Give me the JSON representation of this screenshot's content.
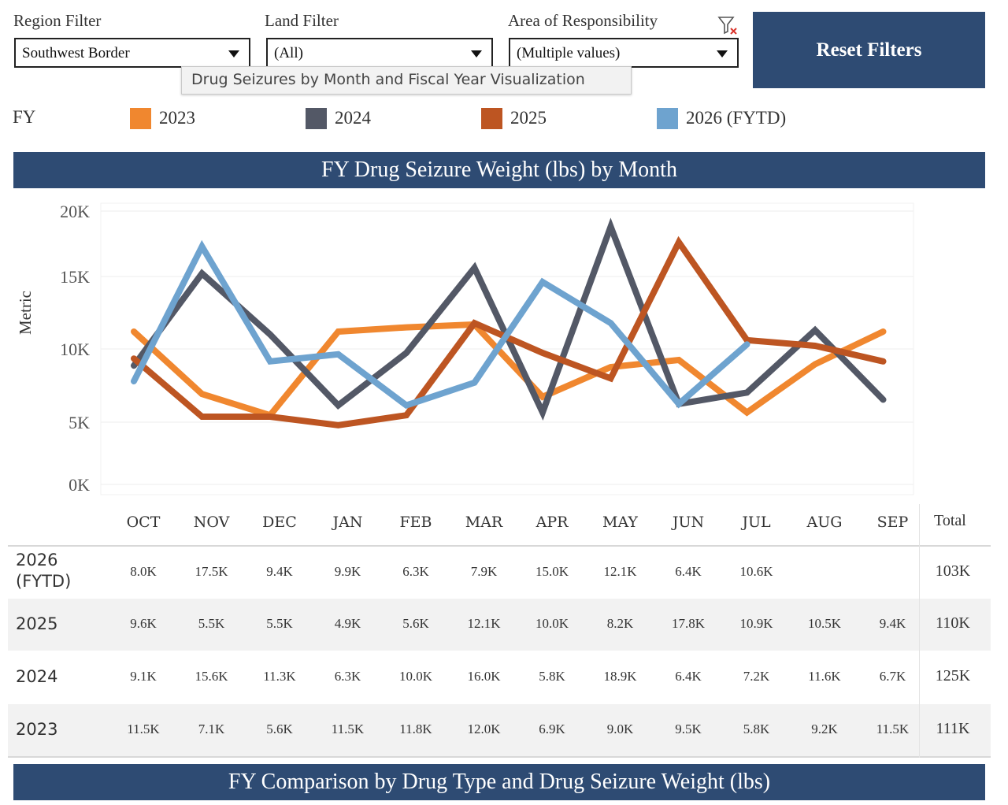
{
  "filters": {
    "region": {
      "label": "Region Filter",
      "value": "Southwest Border"
    },
    "land": {
      "label": "Land Filter",
      "value": "(All)"
    },
    "aor": {
      "label": "Area of Responsibility",
      "value": "(Multiple values)"
    },
    "reset_label": "Reset Filters",
    "tooltip": "Drug Seizures by Month and Fiscal Year Visualization"
  },
  "legend": {
    "title": "FY",
    "items": [
      {
        "label": "2023",
        "color": "#f0872f"
      },
      {
        "label": "2024",
        "color": "#535866"
      },
      {
        "label": "2025",
        "color": "#bd5522"
      },
      {
        "label": "2026 (FYTD)",
        "color": "#6ea3cf"
      }
    ]
  },
  "banners": {
    "chart_title": "FY Drug Seizure Weight (lbs) by Month",
    "bottom_title": "FY Comparison by Drug Type and Drug Seizure Weight (lbs)"
  },
  "chart_data": {
    "type": "line",
    "ylabel": "Metric",
    "ylim": [
      0,
      20000
    ],
    "yticks": [
      "20K",
      "15K",
      "10K",
      "5K",
      "0K"
    ],
    "categories": [
      "OCT",
      "NOV",
      "DEC",
      "JAN",
      "FEB",
      "MAR",
      "APR",
      "MAY",
      "JUN",
      "JUL",
      "AUG",
      "SEP"
    ],
    "series": [
      {
        "name": "2023",
        "color": "#f0872f",
        "values": [
          11500,
          7100,
          5600,
          11500,
          11800,
          12000,
          6900,
          9000,
          9500,
          5800,
          9200,
          11500
        ]
      },
      {
        "name": "2024",
        "color": "#535866",
        "values": [
          9100,
          15600,
          11300,
          6300,
          10000,
          16000,
          5800,
          18900,
          6400,
          7200,
          11600,
          6700
        ]
      },
      {
        "name": "2025",
        "color": "#bd5522",
        "values": [
          9600,
          5500,
          5500,
          4900,
          5600,
          12100,
          10000,
          8200,
          17800,
          10900,
          10500,
          9400
        ]
      },
      {
        "name": "2026 (FYTD)",
        "color": "#6ea3cf",
        "values": [
          8000,
          17500,
          9400,
          9900,
          6300,
          7900,
          15000,
          12100,
          6400,
          10600,
          null,
          null
        ]
      }
    ]
  },
  "table": {
    "total_header": "Total",
    "rows": [
      {
        "label": "2026 (FYTD)",
        "cells": [
          "8.0K",
          "17.5K",
          "9.4K",
          "9.9K",
          "6.3K",
          "7.9K",
          "15.0K",
          "12.1K",
          "6.4K",
          "10.6K",
          "",
          ""
        ],
        "total": "103K"
      },
      {
        "label": "2025",
        "cells": [
          "9.6K",
          "5.5K",
          "5.5K",
          "4.9K",
          "5.6K",
          "12.1K",
          "10.0K",
          "8.2K",
          "17.8K",
          "10.9K",
          "10.5K",
          "9.4K"
        ],
        "total": "110K"
      },
      {
        "label": "2024",
        "cells": [
          "9.1K",
          "15.6K",
          "11.3K",
          "6.3K",
          "10.0K",
          "16.0K",
          "5.8K",
          "18.9K",
          "6.4K",
          "7.2K",
          "11.6K",
          "6.7K"
        ],
        "total": "125K"
      },
      {
        "label": "2023",
        "cells": [
          "11.5K",
          "7.1K",
          "5.6K",
          "11.5K",
          "11.8K",
          "12.0K",
          "6.9K",
          "9.0K",
          "9.5K",
          "5.8K",
          "9.2K",
          "11.5K"
        ],
        "total": "111K"
      }
    ]
  }
}
